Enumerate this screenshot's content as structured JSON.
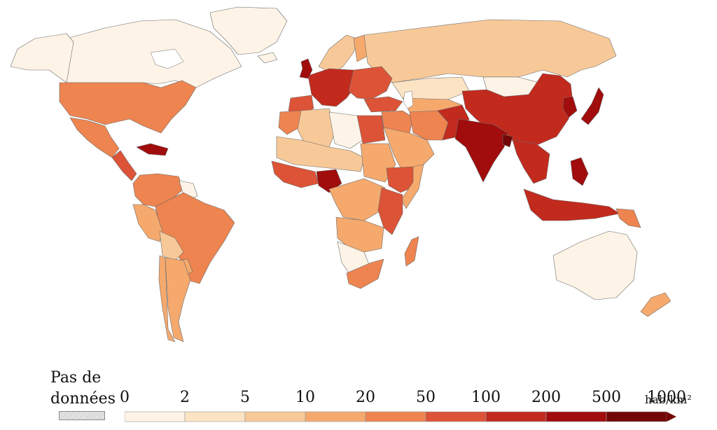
{
  "legend": {
    "no_data_label": "Pas de\ndonnées",
    "unit": "hab/km²",
    "ticks": [
      "0",
      "2",
      "5",
      "10",
      "20",
      "50",
      "100",
      "200",
      "500",
      "1000"
    ],
    "bin_colors": [
      "#fdf3e6",
      "#fbe3c4",
      "#f8c998",
      "#f5a96d",
      "#ee8450",
      "#dc5337",
      "#c22a1e",
      "#a10c0c",
      "#730606"
    ]
  },
  "colors": {
    "no_data": "#d9d9d9",
    "border": "#6b6b6b",
    "ocean": "#ffffff"
  },
  "map": {
    "regions": [
      {
        "name": "Greenland",
        "bin": 0
      },
      {
        "name": "Canada",
        "bin": 0
      },
      {
        "name": "Alaska",
        "bin": 0
      },
      {
        "name": "United States",
        "bin": 4
      },
      {
        "name": "Mexico",
        "bin": 4
      },
      {
        "name": "Central America",
        "bin": 5
      },
      {
        "name": "Caribbean",
        "bin": 7
      },
      {
        "name": "Colombia / Venezuela",
        "bin": 4
      },
      {
        "name": "Guianas",
        "bin": 0
      },
      {
        "name": "Brazil",
        "bin": 4
      },
      {
        "name": "Peru",
        "bin": 3
      },
      {
        "name": "Bolivia",
        "bin": 2
      },
      {
        "name": "Paraguay",
        "bin": 3
      },
      {
        "name": "Chile",
        "bin": 3
      },
      {
        "name": "Argentina",
        "bin": 3
      },
      {
        "name": "Iceland",
        "bin": 0
      },
      {
        "name": "Scandinavia",
        "bin": 2
      },
      {
        "name": "Finland",
        "bin": 3
      },
      {
        "name": "Russia",
        "bin": 2
      },
      {
        "name": "Western Europe",
        "bin": 6
      },
      {
        "name": "United Kingdom",
        "bin": 7
      },
      {
        "name": "Eastern Europe",
        "bin": 5
      },
      {
        "name": "Spain",
        "bin": 5
      },
      {
        "name": "Turkey",
        "bin": 5
      },
      {
        "name": "Kazakhstan",
        "bin": 1
      },
      {
        "name": "Central Asia",
        "bin": 3
      },
      {
        "name": "Mongolia",
        "bin": 0
      },
      {
        "name": "China",
        "bin": 6
      },
      {
        "name": "Korea",
        "bin": 7
      },
      {
        "name": "Japan",
        "bin": 7
      },
      {
        "name": "Middle East",
        "bin": 4
      },
      {
        "name": "Saudi Arabia",
        "bin": 3
      },
      {
        "name": "Iran",
        "bin": 4
      },
      {
        "name": "Pakistan / Afghanistan",
        "bin": 6
      },
      {
        "name": "India",
        "bin": 7
      },
      {
        "name": "Bangladesh",
        "bin": 8
      },
      {
        "name": "Southeast Asia",
        "bin": 6
      },
      {
        "name": "Philippines",
        "bin": 7
      },
      {
        "name": "Indonesia",
        "bin": 6
      },
      {
        "name": "Papua New Guinea",
        "bin": 4
      },
      {
        "name": "Australia",
        "bin": 0
      },
      {
        "name": "New Zealand",
        "bin": 3
      },
      {
        "name": "Morocco",
        "bin": 4
      },
      {
        "name": "Algeria",
        "bin": 2
      },
      {
        "name": "Libya",
        "bin": 0
      },
      {
        "name": "Egypt",
        "bin": 5
      },
      {
        "name": "Sahel",
        "bin": 2
      },
      {
        "name": "West Africa",
        "bin": 5
      },
      {
        "name": "Nigeria",
        "bin": 7
      },
      {
        "name": "Sudan",
        "bin": 3
      },
      {
        "name": "Ethiopia",
        "bin": 5
      },
      {
        "name": "Somalia",
        "bin": 3
      },
      {
        "name": "Central Africa",
        "bin": 3
      },
      {
        "name": "East Africa",
        "bin": 5
      },
      {
        "name": "Angola / Zambia",
        "bin": 3
      },
      {
        "name": "Namibia / Botswana",
        "bin": 0
      },
      {
        "name": "South Africa",
        "bin": 4
      },
      {
        "name": "Madagascar",
        "bin": 4
      }
    ]
  }
}
